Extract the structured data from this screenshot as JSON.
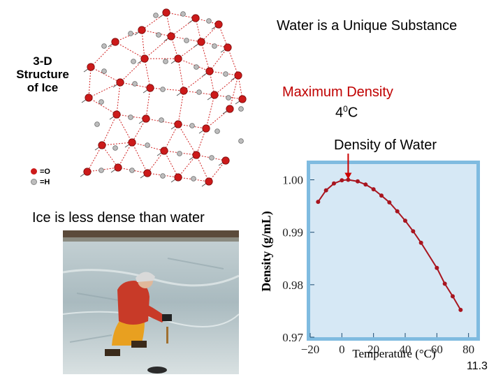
{
  "slide": {
    "title": "Water is a Unique Substance",
    "max_density_label": "Maximum Density",
    "max_density_temp": "4",
    "max_density_temp_sup": "0",
    "max_density_temp_unit": "C",
    "ice_caption": "Ice is less dense than water",
    "slide_number": "11.3"
  },
  "structure": {
    "label_line1": "3-D",
    "label_line2": "Structure",
    "label_line3": "of Ice",
    "legend_o": "=O",
    "legend_h": "=H",
    "oxygen_color": "#cc1a1a",
    "hydrogen_color": "#bdbdbd"
  },
  "chart_data": {
    "type": "line",
    "title": "Density of Water",
    "xlabel": "Temperature (°C)",
    "ylabel": "Density (g/mL)",
    "xlim": [
      -20,
      85
    ],
    "ylim": [
      0.97,
      1.003
    ],
    "xticks": [
      -20,
      0,
      20,
      40,
      60,
      80
    ],
    "yticks": [
      0.97,
      0.98,
      0.99,
      1.0
    ],
    "ytick_labels": [
      "0.97",
      "0.98",
      "0.99",
      "1.00"
    ],
    "x": [
      -15,
      -10,
      -5,
      0,
      4,
      10,
      15,
      20,
      25,
      30,
      35,
      40,
      45,
      50,
      60,
      65,
      70,
      75
    ],
    "y": [
      0.9958,
      0.998,
      0.9993,
      0.9999,
      1.0,
      0.9997,
      0.9991,
      0.9982,
      0.997,
      0.9957,
      0.994,
      0.9922,
      0.9902,
      0.988,
      0.9832,
      0.9802,
      0.9778,
      0.9752
    ],
    "marker_color": "#a8151f",
    "plot_background": "#d6e8f5",
    "frame_color": "#7fbbe0",
    "annotation_arrow_color": "#cc0000"
  }
}
